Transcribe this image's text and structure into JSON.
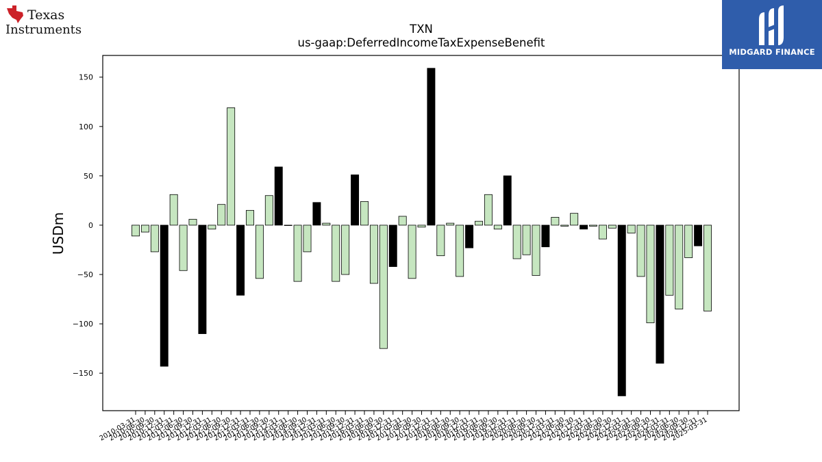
{
  "brand": {
    "ti_line1": "Texas",
    "ti_line2": "Instruments",
    "watermark_name": "MIDGARD FINANCE",
    "watermark_color": "#2f5dab",
    "ti_color": "#cc2229"
  },
  "chart_data": {
    "type": "bar",
    "title": "TXN",
    "subtitle": "us-gaap:DeferredIncomeTaxExpenseBenefit",
    "xlabel": "",
    "ylabel": "USDm",
    "ylim": [
      -188,
      172
    ],
    "yticks": [
      -150,
      -100,
      -50,
      0,
      50,
      100,
      150
    ],
    "grid": false,
    "positive_color": "#c6e6c0",
    "highlight_color": "#000000",
    "categories": [
      "2010-03-31",
      "2010-06-30",
      "2010-09-30",
      "2010-12-31",
      "2011-03-31",
      "2011-06-30",
      "2011-09-30",
      "2011-12-31",
      "2012-03-31",
      "2012-06-30",
      "2012-09-30",
      "2012-12-31",
      "2013-03-31",
      "2013-06-30",
      "2013-09-30",
      "2013-12-31",
      "2014-03-31",
      "2014-06-30",
      "2014-09-30",
      "2014-12-31",
      "2015-03-31",
      "2015-06-30",
      "2015-09-30",
      "2015-12-31",
      "2016-03-31",
      "2016-06-30",
      "2016-09-30",
      "2016-12-31",
      "2017-03-31",
      "2017-06-30",
      "2017-09-30",
      "2017-12-31",
      "2018-03-31",
      "2018-06-30",
      "2018-09-30",
      "2018-12-31",
      "2019-03-31",
      "2019-06-30",
      "2019-09-30",
      "2019-12-31",
      "2020-03-31",
      "2020-06-30",
      "2020-09-30",
      "2020-12-31",
      "2021-03-31",
      "2021-06-30",
      "2021-09-30",
      "2021-12-31",
      "2022-03-31",
      "2022-06-30",
      "2022-09-30",
      "2022-12-31",
      "2023-03-31",
      "2023-06-30",
      "2023-09-30",
      "2023-12-31",
      "2024-03-31",
      "2024-06-30",
      "2024-09-30",
      "2024-12-31",
      "2025-03-31"
    ],
    "values": [
      -11,
      -7,
      -27,
      -143,
      31,
      -46,
      6,
      -110,
      -4,
      21,
      119,
      -71,
      15,
      -54,
      30,
      59,
      0,
      -57,
      -27,
      23,
      2,
      -57,
      -50,
      51,
      24,
      -59,
      -125,
      -42,
      9,
      -54,
      -2,
      159,
      -31,
      2,
      -52,
      -23,
      4,
      31,
      -4,
      50,
      -34,
      -30,
      -51,
      -22,
      8,
      -1,
      12,
      -4,
      -1,
      -14,
      -3,
      -173,
      -8,
      -52,
      -99,
      -140,
      -71,
      -85,
      -33,
      -21,
      -87
    ],
    "highlighted": [
      false,
      false,
      false,
      true,
      false,
      false,
      false,
      true,
      false,
      false,
      false,
      true,
      false,
      false,
      false,
      true,
      false,
      false,
      false,
      true,
      false,
      false,
      false,
      true,
      false,
      false,
      false,
      true,
      false,
      false,
      false,
      true,
      false,
      false,
      false,
      true,
      false,
      false,
      false,
      true,
      false,
      false,
      false,
      true,
      false,
      false,
      false,
      true,
      false,
      false,
      false,
      true,
      false,
      false,
      false,
      true,
      false,
      false,
      false,
      true,
      false
    ]
  }
}
